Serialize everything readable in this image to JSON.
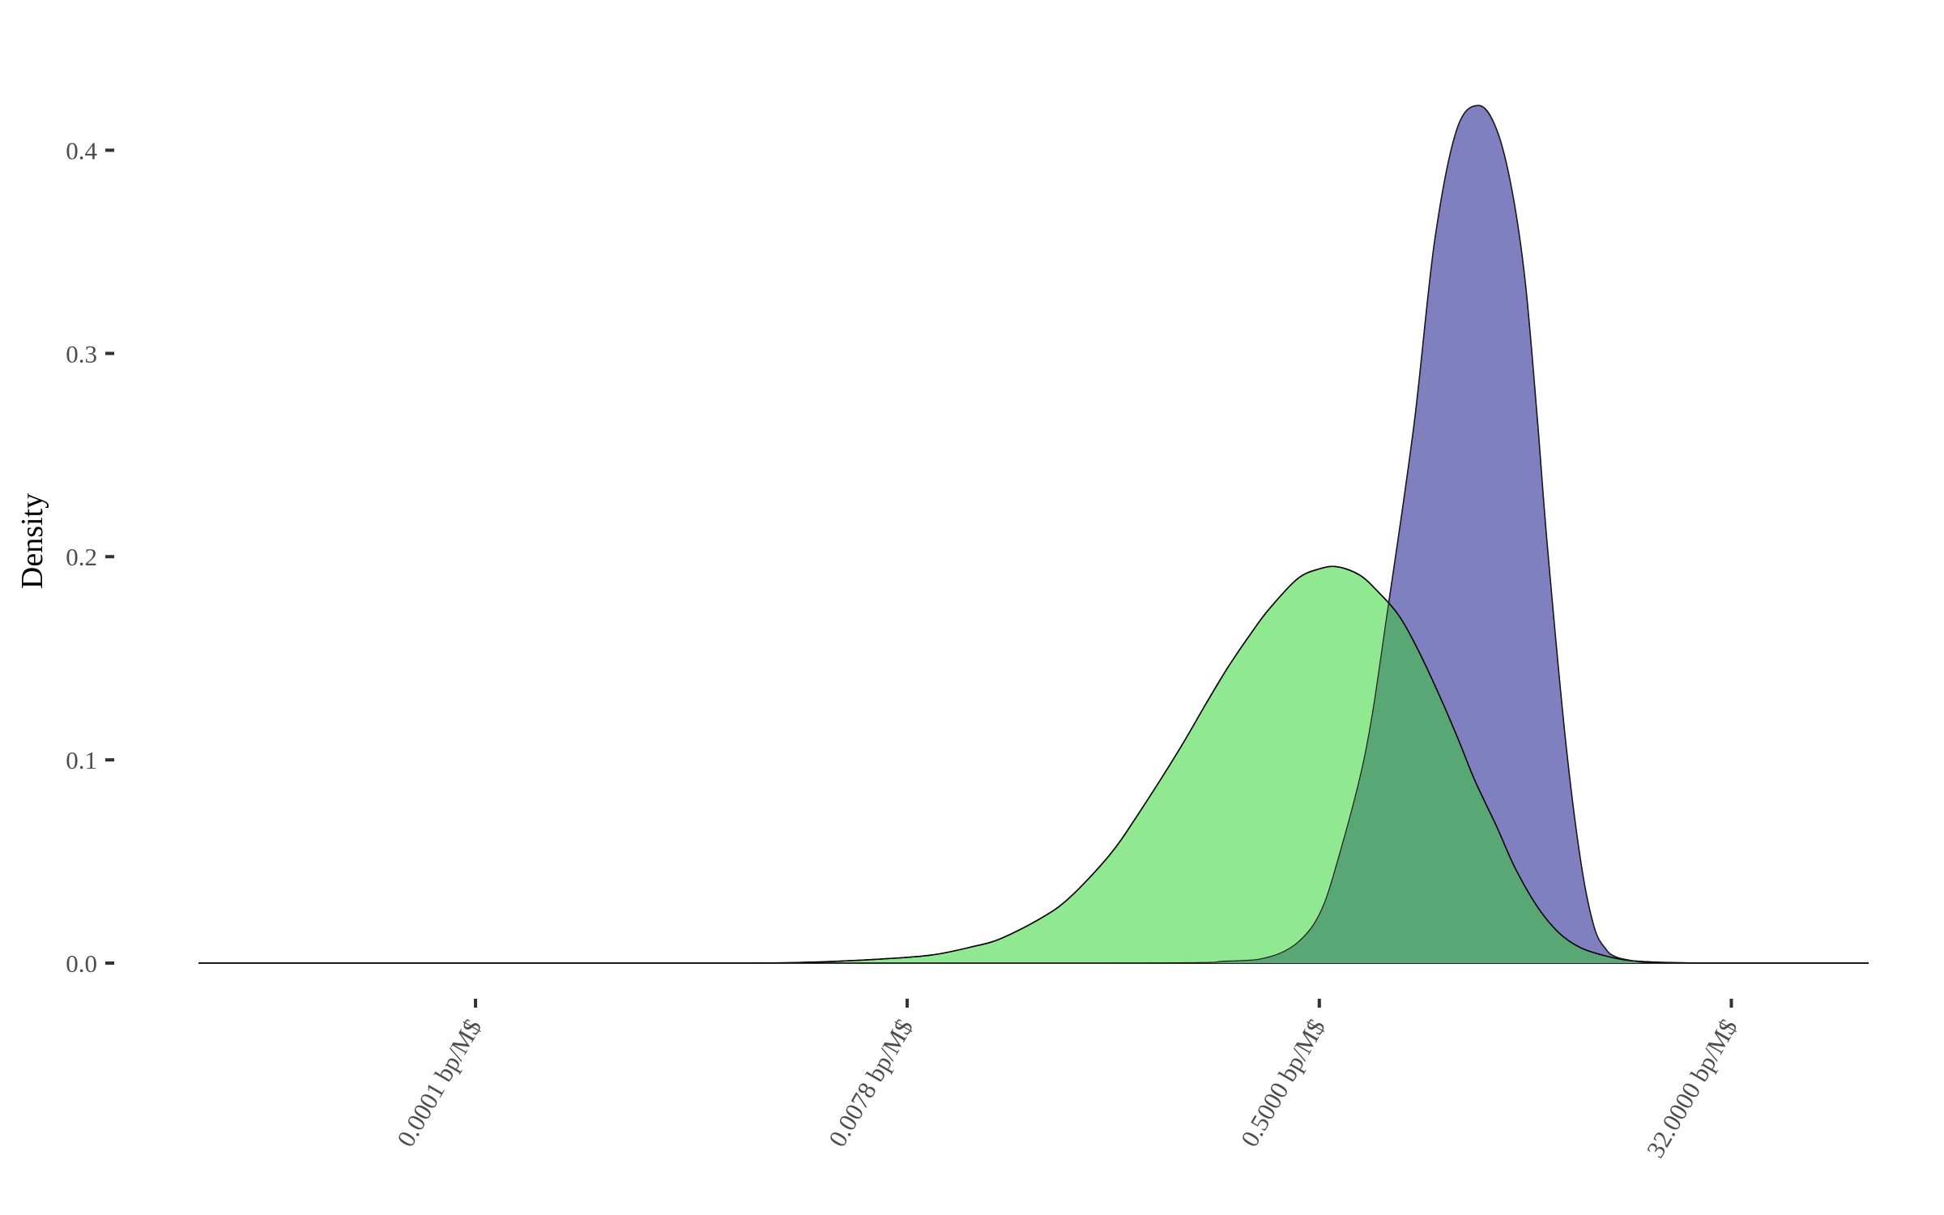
{
  "chart_data": {
    "type": "area",
    "title": "",
    "xlabel": "",
    "ylabel": "Density",
    "x_scale": "log2",
    "x_unit": "bp/M$",
    "xlim": [
      6.1e-06,
      128
    ],
    "ylim": [
      0,
      0.45
    ],
    "x_ticks": [
      0.0001,
      0.0078,
      0.5,
      32
    ],
    "x_tick_labels": [
      "0.0001 bp/M$",
      "0.0078 bp/M$",
      "0.5000 bp/M$",
      "32.0000 bp/M$"
    ],
    "y_ticks": [
      0.0,
      0.1,
      0.2,
      0.3,
      0.4
    ],
    "y_tick_labels": [
      "0.0",
      "0.1",
      "0.2",
      "0.3",
      "0.4"
    ],
    "grid": false,
    "legend": "none",
    "series": [
      {
        "color": "#8080c0",
        "x": [
          6.1e-06,
          0.05,
          0.2,
          0.3,
          0.4,
          0.5,
          0.6,
          0.8,
          1.0,
          1.3,
          1.6,
          2.0,
          2.5,
          3.0,
          3.5,
          4.0,
          4.5,
          5.0,
          6.0,
          7.0,
          8.0,
          9.0,
          10.0,
          12.0,
          14.0,
          17.0,
          20.0,
          128
        ],
        "y": [
          0.0,
          0.0,
          0.001,
          0.003,
          0.01,
          0.024,
          0.05,
          0.105,
          0.175,
          0.265,
          0.355,
          0.41,
          0.422,
          0.41,
          0.38,
          0.335,
          0.27,
          0.205,
          0.11,
          0.05,
          0.018,
          0.007,
          0.003,
          0.001,
          0.0,
          0.0,
          0.0,
          0.0
        ]
      },
      {
        "color": "#90e890",
        "x": [
          6.1e-06,
          0.001,
          0.003,
          0.006,
          0.01,
          0.015,
          0.02,
          0.03,
          0.04,
          0.06,
          0.08,
          0.12,
          0.16,
          0.2,
          0.25,
          0.3,
          0.4,
          0.5,
          0.6,
          0.75,
          0.9,
          1.1,
          1.3,
          1.6,
          2.0,
          2.4,
          3.0,
          3.6,
          4.5,
          5.6,
          7.0,
          9.0,
          11.0,
          14.0,
          18.0,
          25.0,
          35.0,
          50.0,
          128
        ],
        "y": [
          0.0,
          0.0,
          0.0005,
          0.002,
          0.004,
          0.008,
          0.012,
          0.022,
          0.032,
          0.053,
          0.073,
          0.104,
          0.128,
          0.146,
          0.162,
          0.174,
          0.189,
          0.194,
          0.195,
          0.191,
          0.183,
          0.172,
          0.158,
          0.137,
          0.112,
          0.09,
          0.067,
          0.047,
          0.028,
          0.015,
          0.0075,
          0.0035,
          0.0015,
          0.0006,
          0.0002,
          0.0,
          0.0,
          0.0,
          0.0
        ]
      }
    ],
    "overlap_color": "#58a775"
  }
}
